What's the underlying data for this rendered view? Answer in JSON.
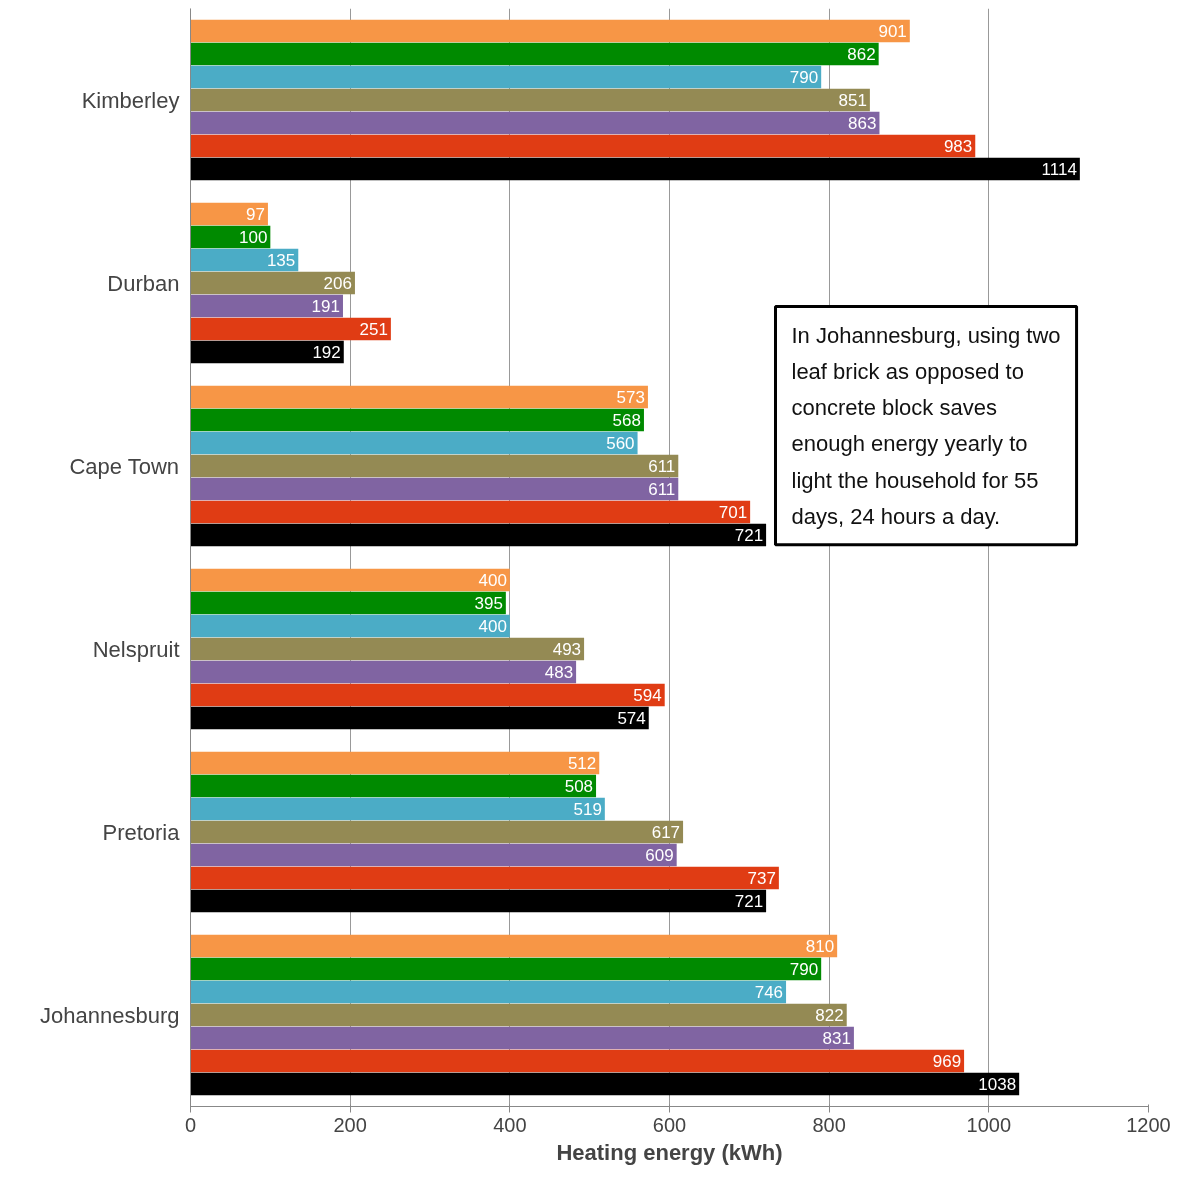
{
  "chart_data": {
    "type": "bar",
    "orientation": "horizontal",
    "xlabel": "Heating energy (kWh)",
    "categories": [
      "Kimberley",
      "Durban",
      "Cape Town",
      "Nelspruit",
      "Pretoria",
      "Johannesburg"
    ],
    "series": [
      {
        "color": "#f79646",
        "values": [
          901,
          97,
          573,
          400,
          512,
          810
        ]
      },
      {
        "color": "#008a00",
        "values": [
          862,
          100,
          568,
          395,
          508,
          790
        ]
      },
      {
        "color": "#4bacc6",
        "values": [
          790,
          135,
          560,
          400,
          519,
          746
        ]
      },
      {
        "color": "#948a54",
        "values": [
          851,
          206,
          611,
          493,
          617,
          822
        ]
      },
      {
        "color": "#8064a2",
        "values": [
          863,
          191,
          611,
          483,
          609,
          831
        ]
      },
      {
        "color": "#e03c14",
        "values": [
          983,
          251,
          701,
          594,
          737,
          969
        ]
      },
      {
        "color": "#000000",
        "values": [
          1114,
          192,
          721,
          574,
          721,
          1038
        ]
      }
    ],
    "xlim": [
      0,
      1200
    ],
    "xticks": [
      0,
      200,
      400,
      600,
      800,
      1000,
      1200
    ],
    "grid": "x",
    "data_labels": true,
    "annotations": [
      "In Johannesburg, using two leaf brick as opposed to concrete block saves enough energy yearly to light the household for 55 days, 24 hours a day."
    ]
  }
}
